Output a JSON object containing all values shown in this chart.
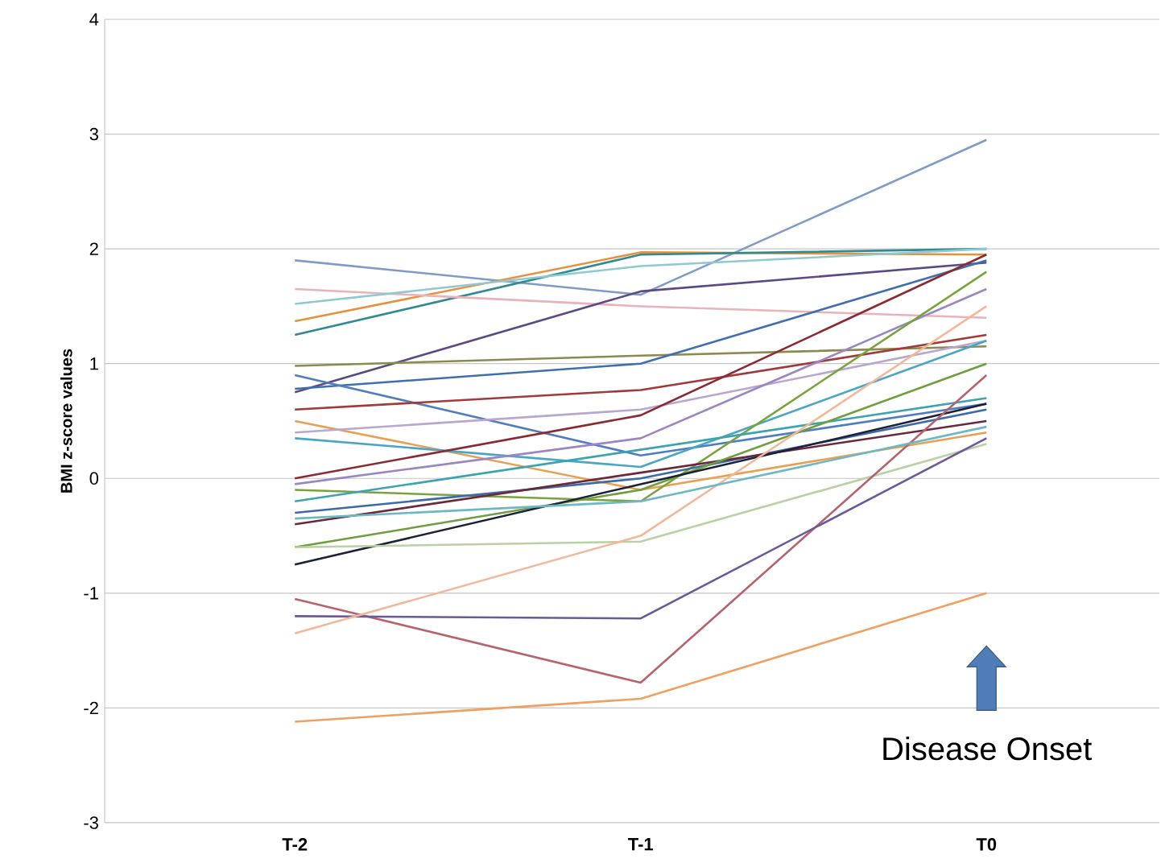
{
  "chart_data": {
    "type": "line",
    "ylabel": "BMI z-score values",
    "categories": [
      "T-2",
      "T-1",
      "T0"
    ],
    "ylim": [
      -3,
      4
    ],
    "yticks": [
      -3,
      -2,
      -1,
      0,
      1,
      2,
      3,
      4
    ],
    "grid": "y",
    "marker": "none",
    "line_style": "solid",
    "annotations": [
      "Disease Onset"
    ],
    "series": [
      {
        "color": "#7f9cc8",
        "values": [
          1.9,
          1.6,
          2.95
        ]
      },
      {
        "color": "#e8913c",
        "values": [
          1.37,
          1.97,
          1.95
        ]
      },
      {
        "color": "#2f8b93",
        "values": [
          1.25,
          1.95,
          2.0
        ]
      },
      {
        "color": "#e9b3b8",
        "values": [
          1.65,
          1.5,
          1.4
        ]
      },
      {
        "color": "#8fcad4",
        "values": [
          1.52,
          1.85,
          2.0
        ]
      },
      {
        "color": "#5b4a86",
        "values": [
          0.75,
          1.63,
          1.88
        ]
      },
      {
        "color": "#8c8a4e",
        "values": [
          0.98,
          1.07,
          1.15
        ]
      },
      {
        "color": "#3f6fb0",
        "values": [
          0.78,
          1.0,
          1.9
        ]
      },
      {
        "color": "#4f7dc0",
        "values": [
          0.9,
          0.2,
          0.65
        ]
      },
      {
        "color": "#a23a3a",
        "values": [
          0.6,
          0.77,
          1.25
        ]
      },
      {
        "color": "#e9a050",
        "values": [
          0.5,
          -0.1,
          0.4
        ]
      },
      {
        "color": "#b9a7d1",
        "values": [
          0.4,
          0.6,
          1.2
        ]
      },
      {
        "color": "#4aa6c4",
        "values": [
          0.35,
          0.1,
          1.2
        ]
      },
      {
        "color": "#8a2a33",
        "values": [
          0.0,
          0.55,
          1.95
        ]
      },
      {
        "color": "#9a86c2",
        "values": [
          -0.05,
          0.35,
          1.65
        ]
      },
      {
        "color": "#7aa33e",
        "values": [
          -0.1,
          -0.2,
          1.8
        ]
      },
      {
        "color": "#3ca3b0",
        "values": [
          -0.2,
          0.25,
          0.7
        ]
      },
      {
        "color": "#3d6aa8",
        "values": [
          -0.3,
          0.0,
          0.6
        ]
      },
      {
        "color": "#6a2a3a",
        "values": [
          -0.4,
          0.05,
          0.5
        ]
      },
      {
        "color": "#6f9e3c",
        "values": [
          -0.6,
          -0.1,
          1.0
        ]
      },
      {
        "color": "#1c2138",
        "values": [
          -0.75,
          -0.05,
          0.65
        ]
      },
      {
        "color": "#b9d1a3",
        "values": [
          -0.6,
          -0.55,
          0.3
        ]
      },
      {
        "color": "#b8626e",
        "values": [
          -1.05,
          -1.78,
          0.9
        ]
      },
      {
        "color": "#6a5a9a",
        "values": [
          -1.2,
          -1.22,
          0.35
        ]
      },
      {
        "color": "#f2b89a",
        "values": [
          -1.35,
          -0.5,
          1.5
        ]
      },
      {
        "color": "#f0a060",
        "values": [
          -2.12,
          -1.92,
          -1.0
        ]
      },
      {
        "color": "#6cb8c6",
        "values": [
          -0.35,
          -0.2,
          0.45
        ]
      }
    ]
  }
}
